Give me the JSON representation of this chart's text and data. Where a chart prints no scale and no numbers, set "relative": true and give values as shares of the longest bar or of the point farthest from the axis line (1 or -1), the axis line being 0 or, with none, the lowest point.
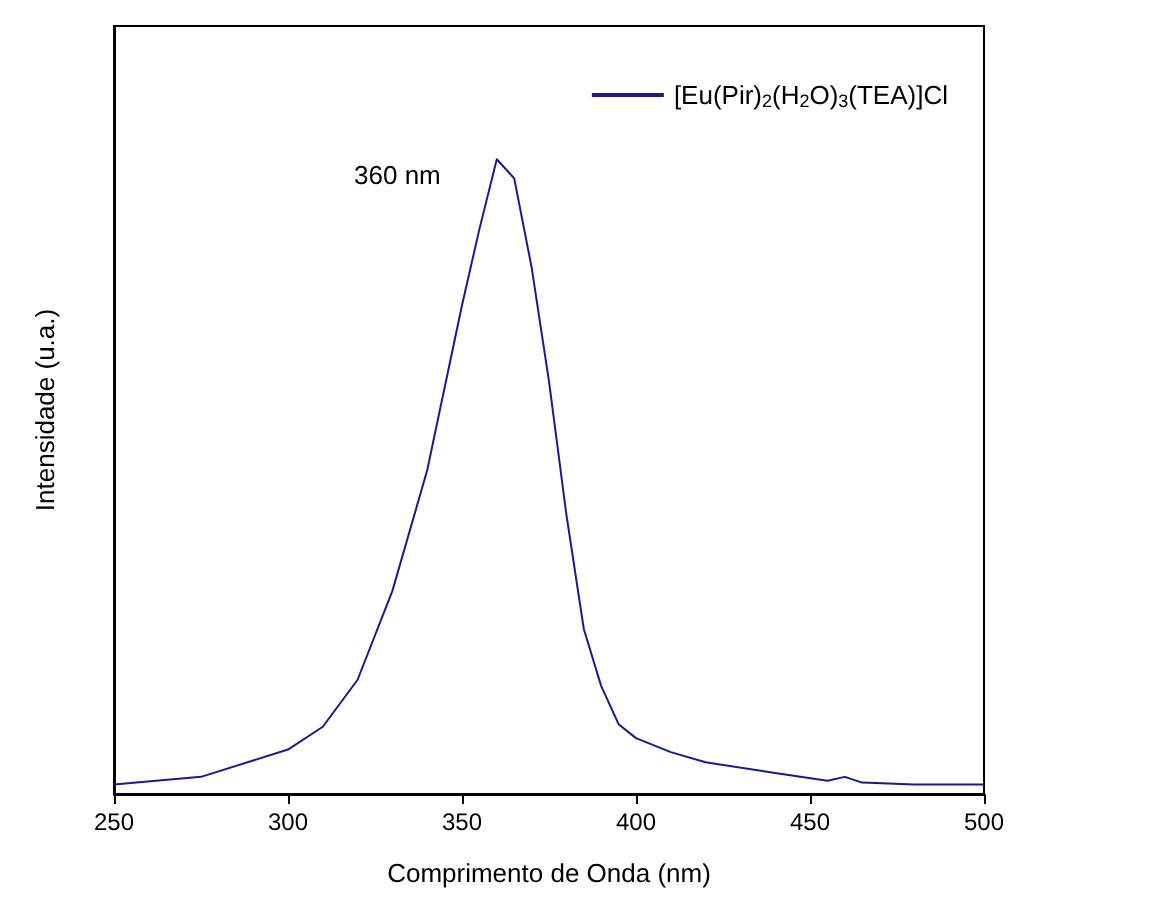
{
  "chart_data": {
    "type": "line",
    "xlabel": "Comprimento de Onda (nm)",
    "ylabel": "Intensidade (u.a.)",
    "relative": true,
    "tick_labels": "x",
    "xlim": [
      250,
      500
    ],
    "xticks": [
      250,
      300,
      350,
      400,
      450,
      500
    ],
    "legend": "top right",
    "line_style": "solid",
    "marker": "none",
    "grid": false,
    "annotations": [
      {
        "text": "360 nm",
        "x": 360,
        "y": 1
      }
    ],
    "series": [
      {
        "name": "[Eu(Pir)$_{2}$(H$_{2}$O)$_{3}$(TEA)]Cl",
        "color": "#1a1a8c",
        "x": [
          250,
          275,
          300,
          310,
          320,
          330,
          340,
          350,
          355,
          360,
          365,
          370,
          375,
          380,
          385,
          390,
          395,
          400,
          410,
          420,
          440,
          455,
          460,
          465,
          480,
          500
        ],
        "values": [
          0.015,
          0.027,
          0.07,
          0.106,
          0.18,
          0.32,
          0.51,
          0.77,
          0.89,
          1,
          0.97,
          0.83,
          0.65,
          0.44,
          0.26,
          0.17,
          0.11,
          0.088,
          0.066,
          0.05,
          0.033,
          0.021,
          0.027,
          0.018,
          0.015,
          0.015
        ]
      }
    ]
  }
}
